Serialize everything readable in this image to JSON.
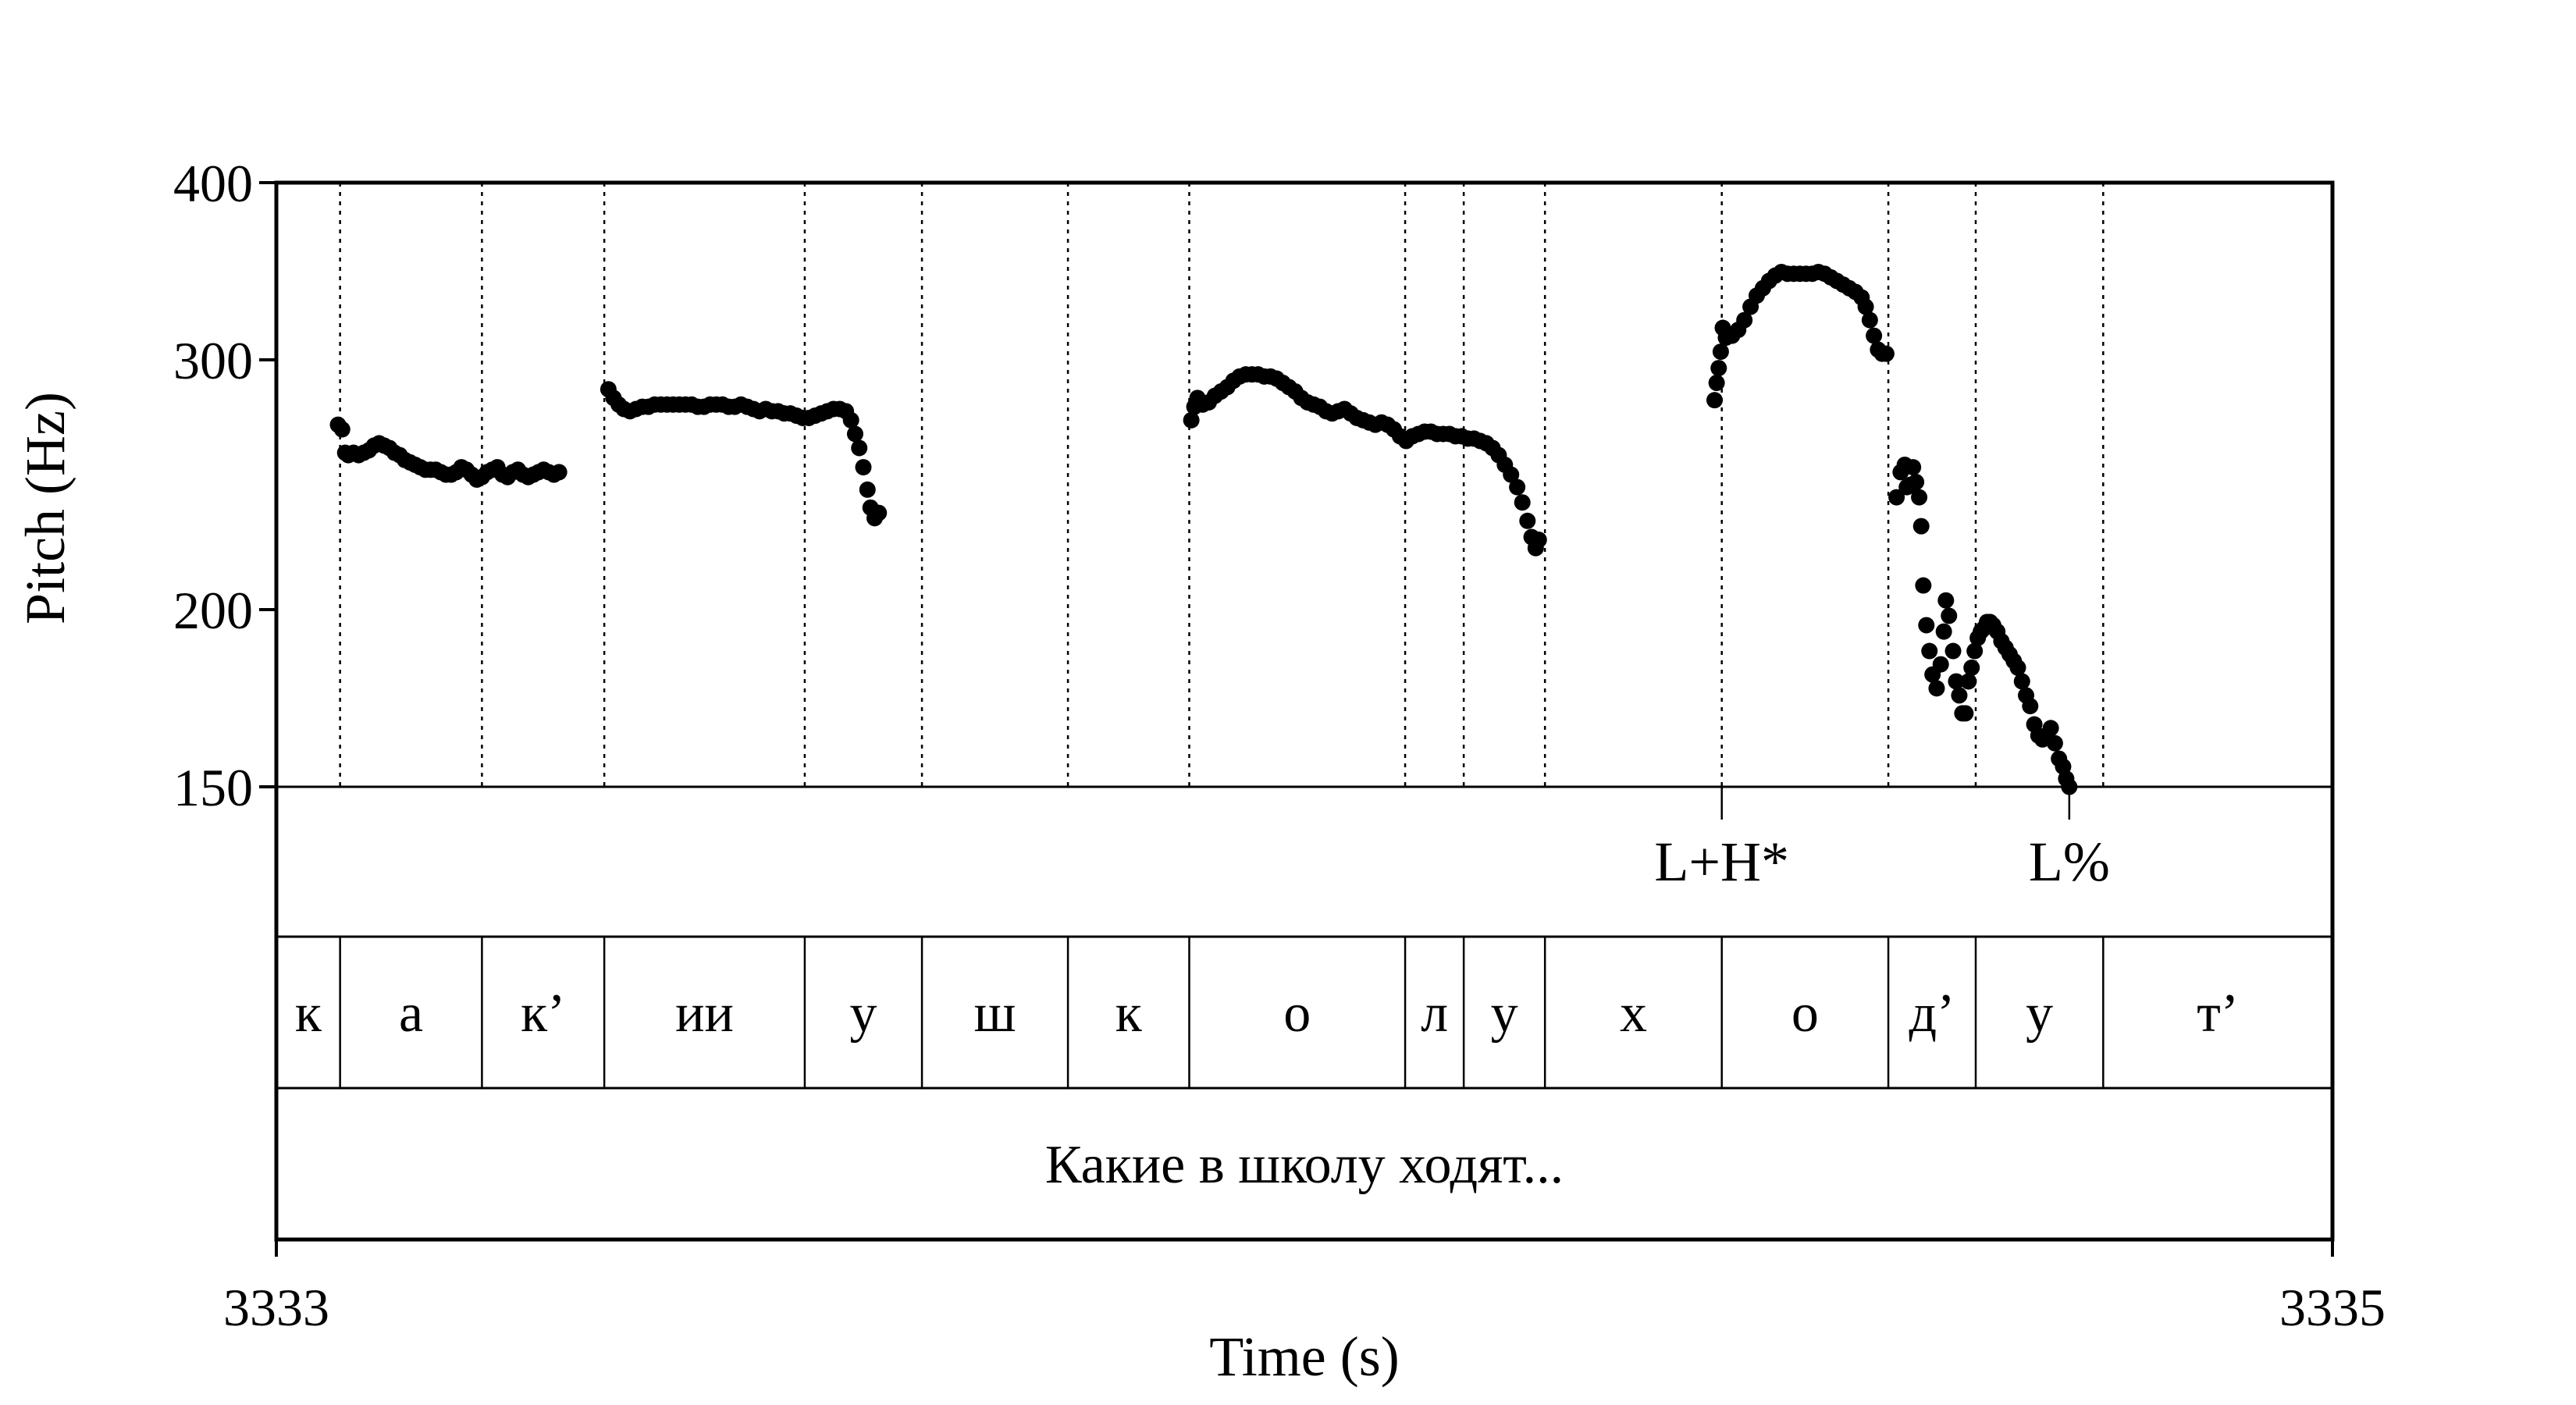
{
  "chart_data": {
    "type": "scatter",
    "xlabel": "Time (s)",
    "ylabel": "Pitch (Hz)",
    "xlim": [
      3333,
      3335
    ],
    "ylim": [
      150,
      400
    ],
    "y_scale": "log",
    "x_tick_labels": [
      "3333",
      "3335"
    ],
    "y_tick_labels": [
      "400",
      "300",
      "200",
      "150"
    ],
    "y_ticks": [
      400,
      300,
      200,
      150
    ],
    "grid": "dotted vertical lines at segment boundaries",
    "tiers": {
      "tone": [
        {
          "label": "L+H*",
          "time": 3334.406
        },
        {
          "label": "L%",
          "time": 3334.744
        }
      ],
      "segments": [
        {
          "label": "к",
          "start": 3333.0,
          "end": 3333.062
        },
        {
          "label": "а",
          "start": 3333.062,
          "end": 3333.2
        },
        {
          "label": "к’",
          "start": 3333.2,
          "end": 3333.319
        },
        {
          "label": "ии",
          "start": 3333.319,
          "end": 3333.514
        },
        {
          "label": "у",
          "start": 3333.514,
          "end": 3333.628
        },
        {
          "label": "ш",
          "start": 3333.628,
          "end": 3333.77
        },
        {
          "label": "к",
          "start": 3333.77,
          "end": 3333.888
        },
        {
          "label": "о",
          "start": 3333.888,
          "end": 3334.098
        },
        {
          "label": "л",
          "start": 3334.098,
          "end": 3334.155
        },
        {
          "label": "у",
          "start": 3334.155,
          "end": 3334.234
        },
        {
          "label": "х",
          "start": 3334.234,
          "end": 3334.406
        },
        {
          "label": "о",
          "start": 3334.406,
          "end": 3334.568
        },
        {
          "label": "д’",
          "start": 3334.568,
          "end": 3334.653
        },
        {
          "label": "у",
          "start": 3334.653,
          "end": 3334.777
        },
        {
          "label": "т’",
          "start": 3334.777,
          "end": 3335.0
        }
      ],
      "utterance": [
        {
          "label": "Какие в школу ходят...",
          "start": 3333.0,
          "end": 3335.0
        }
      ]
    },
    "series": [
      {
        "values": [
          [
            3333.06,
            270
          ],
          [
            3333.064,
            268
          ],
          [
            3333.067,
            258
          ],
          [
            3333.07,
            257
          ],
          [
            3333.075,
            258
          ],
          [
            3333.08,
            257
          ],
          [
            3333.085,
            258
          ],
          [
            3333.09,
            259
          ],
          [
            3333.095,
            261
          ],
          [
            3333.1,
            262
          ],
          [
            3333.105,
            261
          ],
          [
            3333.11,
            260
          ],
          [
            3333.115,
            258
          ],
          [
            3333.12,
            257
          ],
          [
            3333.125,
            255
          ],
          [
            3333.13,
            254
          ],
          [
            3333.135,
            253
          ],
          [
            3333.14,
            252
          ],
          [
            3333.145,
            251
          ],
          [
            3333.15,
            251
          ],
          [
            3333.155,
            251
          ],
          [
            3333.16,
            250
          ],
          [
            3333.165,
            249
          ],
          [
            3333.17,
            249
          ],
          [
            3333.175,
            250
          ],
          [
            3333.18,
            252
          ],
          [
            3333.185,
            251
          ],
          [
            3333.19,
            249
          ],
          [
            3333.195,
            247
          ],
          [
            3333.2,
            248
          ],
          [
            3333.205,
            250
          ],
          [
            3333.21,
            251
          ],
          [
            3333.215,
            252
          ],
          [
            3333.22,
            249
          ],
          [
            3333.225,
            248
          ],
          [
            3333.23,
            250
          ],
          [
            3333.235,
            251
          ],
          [
            3333.24,
            249
          ],
          [
            3333.245,
            248
          ],
          [
            3333.25,
            249
          ],
          [
            3333.255,
            250
          ],
          [
            3333.26,
            251
          ],
          [
            3333.265,
            250
          ],
          [
            3333.27,
            249
          ],
          [
            3333.275,
            250
          ]
        ]
      },
      {
        "values": [
          [
            3333.323,
            286
          ],
          [
            3333.328,
            282
          ],
          [
            3333.333,
            279
          ],
          [
            3333.338,
            277
          ],
          [
            3333.344,
            276
          ],
          [
            3333.35,
            277
          ],
          [
            3333.356,
            278
          ],
          [
            3333.362,
            278
          ],
          [
            3333.368,
            279
          ],
          [
            3333.374,
            279
          ],
          [
            3333.38,
            279
          ],
          [
            3333.386,
            279
          ],
          [
            3333.392,
            279
          ],
          [
            3333.398,
            279
          ],
          [
            3333.404,
            279
          ],
          [
            3333.41,
            278
          ],
          [
            3333.416,
            278
          ],
          [
            3333.422,
            279
          ],
          [
            3333.428,
            279
          ],
          [
            3333.434,
            279
          ],
          [
            3333.44,
            278
          ],
          [
            3333.446,
            278
          ],
          [
            3333.452,
            279
          ],
          [
            3333.458,
            278
          ],
          [
            3333.464,
            277
          ],
          [
            3333.47,
            276
          ],
          [
            3333.476,
            277
          ],
          [
            3333.482,
            276
          ],
          [
            3333.488,
            276
          ],
          [
            3333.494,
            275
          ],
          [
            3333.5,
            275
          ],
          [
            3333.506,
            274
          ],
          [
            3333.512,
            273
          ],
          [
            3333.518,
            273
          ],
          [
            3333.524,
            274
          ],
          [
            3333.53,
            275
          ],
          [
            3333.536,
            276
          ],
          [
            3333.542,
            277
          ],
          [
            3333.548,
            277
          ],
          [
            3333.554,
            276
          ],
          [
            3333.559,
            272
          ],
          [
            3333.563,
            266
          ],
          [
            3333.567,
            260
          ],
          [
            3333.571,
            252
          ],
          [
            3333.575,
            243
          ],
          [
            3333.578,
            236
          ],
          [
            3333.582,
            232
          ],
          [
            3333.586,
            234
          ]
        ]
      },
      {
        "values": [
          [
            3333.89,
            272
          ],
          [
            3333.893,
            278
          ],
          [
            3333.896,
            282
          ],
          [
            3333.901,
            279
          ],
          [
            3333.907,
            280
          ],
          [
            3333.913,
            283
          ],
          [
            3333.919,
            285
          ],
          [
            3333.925,
            287
          ],
          [
            3333.931,
            290
          ],
          [
            3333.937,
            292
          ],
          [
            3333.943,
            293
          ],
          [
            3333.949,
            293
          ],
          [
            3333.955,
            293
          ],
          [
            3333.961,
            292
          ],
          [
            3333.967,
            292
          ],
          [
            3333.973,
            291
          ],
          [
            3333.979,
            289
          ],
          [
            3333.985,
            287
          ],
          [
            3333.991,
            285
          ],
          [
            3333.997,
            282
          ],
          [
            3334.003,
            280
          ],
          [
            3334.009,
            279
          ],
          [
            3334.015,
            278
          ],
          [
            3334.021,
            276
          ],
          [
            3334.027,
            275
          ],
          [
            3334.033,
            276
          ],
          [
            3334.039,
            277
          ],
          [
            3334.045,
            275
          ],
          [
            3334.051,
            273
          ],
          [
            3334.057,
            272
          ],
          [
            3334.063,
            271
          ],
          [
            3334.069,
            270
          ],
          [
            3334.075,
            271
          ],
          [
            3334.081,
            270
          ],
          [
            3334.087,
            268
          ],
          [
            3334.093,
            265
          ],
          [
            3334.099,
            263
          ],
          [
            3334.105,
            265
          ],
          [
            3334.111,
            266
          ],
          [
            3334.117,
            267
          ],
          [
            3334.123,
            267
          ],
          [
            3334.129,
            266
          ],
          [
            3334.135,
            266
          ],
          [
            3334.141,
            266
          ],
          [
            3334.147,
            265
          ],
          [
            3334.153,
            265
          ],
          [
            3334.159,
            264
          ],
          [
            3334.165,
            264
          ],
          [
            3334.171,
            263
          ],
          [
            3334.177,
            262
          ],
          [
            3334.183,
            260
          ],
          [
            3334.189,
            257
          ],
          [
            3334.195,
            253
          ],
          [
            3334.201,
            249
          ],
          [
            3334.207,
            244
          ],
          [
            3334.212,
            238
          ],
          [
            3334.217,
            231
          ],
          [
            3334.221,
            225
          ],
          [
            3334.225,
            221
          ],
          [
            3334.228,
            224
          ]
        ]
      },
      {
        "values": [
          [
            3334.399,
            281
          ],
          [
            3334.401,
            289
          ],
          [
            3334.403,
            296
          ],
          [
            3334.405,
            304
          ],
          [
            3334.407,
            316
          ],
          [
            3334.41,
            311
          ],
          [
            3334.416,
            312
          ],
          [
            3334.422,
            315
          ],
          [
            3334.428,
            320
          ],
          [
            3334.434,
            327
          ],
          [
            3334.44,
            333
          ],
          [
            3334.446,
            337
          ],
          [
            3334.452,
            341
          ],
          [
            3334.458,
            344
          ],
          [
            3334.464,
            346
          ],
          [
            3334.47,
            345
          ],
          [
            3334.476,
            345
          ],
          [
            3334.482,
            345
          ],
          [
            3334.488,
            345
          ],
          [
            3334.494,
            345
          ],
          [
            3334.5,
            346
          ],
          [
            3334.506,
            345
          ],
          [
            3334.512,
            343
          ],
          [
            3334.518,
            341
          ],
          [
            3334.524,
            339
          ],
          [
            3334.53,
            337
          ],
          [
            3334.536,
            335
          ],
          [
            3334.542,
            332
          ],
          [
            3334.546,
            327
          ],
          [
            3334.55,
            320
          ],
          [
            3334.554,
            312
          ],
          [
            3334.558,
            305
          ],
          [
            3334.562,
            303
          ],
          [
            3334.566,
            303
          ]
        ]
      },
      {
        "values": [
          [
            3334.576,
            240
          ],
          [
            3334.58,
            250
          ],
          [
            3334.584,
            253
          ],
          [
            3334.586,
            244
          ],
          [
            3334.59,
            245
          ],
          [
            3334.592,
            252
          ],
          [
            3334.595,
            246
          ],
          [
            3334.598,
            240
          ],
          [
            3334.6,
            229
          ],
          [
            3334.602,
            208
          ],
          [
            3334.605,
            195
          ],
          [
            3334.608,
            187
          ],
          [
            3334.611,
            180
          ],
          [
            3334.615,
            176
          ],
          [
            3334.619,
            183
          ],
          [
            3334.622,
            193
          ],
          [
            3334.624,
            203
          ],
          [
            3334.627,
            198
          ],
          [
            3334.631,
            187
          ],
          [
            3334.634,
            178
          ],
          [
            3334.637,
            174
          ],
          [
            3334.64,
            169
          ],
          [
            3334.643,
            169
          ],
          [
            3334.646,
            178
          ],
          [
            3334.649,
            182
          ],
          [
            3334.652,
            187
          ],
          [
            3334.655,
            191
          ],
          [
            3334.658,
            193
          ],
          [
            3334.661,
            194
          ],
          [
            3334.664,
            196
          ],
          [
            3334.667,
            196
          ],
          [
            3334.67,
            195
          ],
          [
            3334.674,
            193
          ],
          [
            3334.678,
            190
          ],
          [
            3334.682,
            188
          ],
          [
            3334.686,
            186
          ],
          [
            3334.69,
            184
          ],
          [
            3334.694,
            182
          ],
          [
            3334.698,
            178
          ],
          [
            3334.702,
            174
          ],
          [
            3334.706,
            171
          ],
          [
            3334.71,
            166
          ],
          [
            3334.714,
            163
          ],
          [
            3334.718,
            162
          ],
          [
            3334.722,
            163
          ],
          [
            3334.726,
            165
          ],
          [
            3334.73,
            161
          ],
          [
            3334.734,
            157
          ],
          [
            3334.738,
            155
          ],
          [
            3334.741,
            152
          ],
          [
            3334.744,
            150
          ]
        ]
      }
    ]
  }
}
